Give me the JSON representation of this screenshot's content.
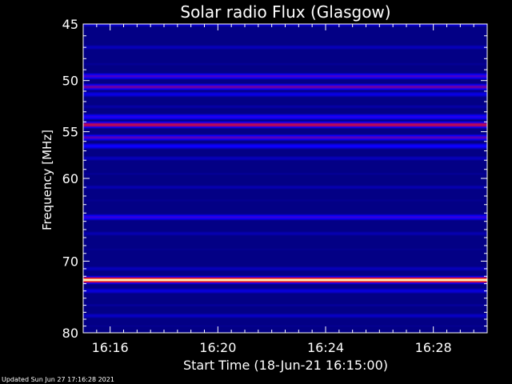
{
  "chart_data": {
    "type": "heatmap",
    "title": "Solar radio Flux (Glasgow)",
    "xlabel": "Start Time (18-Jun-21 16:15:00)",
    "ylabel": "Frequency [MHz]",
    "x_ticks": [
      "16:16",
      "16:20",
      "16:24",
      "16:28"
    ],
    "x_tick_minutes": [
      1,
      5,
      9,
      13
    ],
    "xlim_minutes": [
      0,
      15
    ],
    "y_ticks": [
      45,
      50,
      55,
      60,
      70,
      80
    ],
    "ylim": [
      45,
      80
    ],
    "y_scale": "log",
    "colormap": "blue-red-yellow",
    "background": "#000000",
    "axis_color": "#ffffff",
    "bands": [
      {
        "freq": 45.0,
        "level": 0.3
      },
      {
        "freq": 45.8,
        "level": 0.05
      },
      {
        "freq": 47.0,
        "level": 0.22
      },
      {
        "freq": 48.5,
        "level": 0.15
      },
      {
        "freq": 49.6,
        "level": 0.45
      },
      {
        "freq": 50.6,
        "level": 0.52
      },
      {
        "freq": 51.3,
        "level": 0.3
      },
      {
        "freq": 52.5,
        "level": 0.18
      },
      {
        "freq": 53.5,
        "level": 0.4
      },
      {
        "freq": 54.3,
        "level": 0.66
      },
      {
        "freq": 55.6,
        "level": 0.48
      },
      {
        "freq": 56.5,
        "level": 0.36
      },
      {
        "freq": 57.8,
        "level": 0.22
      },
      {
        "freq": 59.5,
        "level": 0.15
      },
      {
        "freq": 61.0,
        "level": 0.2
      },
      {
        "freq": 62.5,
        "level": 0.14
      },
      {
        "freq": 64.5,
        "level": 0.42
      },
      {
        "freq": 66.5,
        "level": 0.2
      },
      {
        "freq": 68.5,
        "level": 0.14
      },
      {
        "freq": 71.0,
        "level": 0.22
      },
      {
        "freq": 72.5,
        "level": 1.0
      },
      {
        "freq": 74.0,
        "level": 0.28
      },
      {
        "freq": 76.0,
        "level": 0.16
      },
      {
        "freq": 77.5,
        "level": 0.24
      },
      {
        "freq": 79.0,
        "level": 0.14
      }
    ]
  },
  "footer": {
    "updated": "Updated Sun Jun 27 17:16:28 2021"
  }
}
